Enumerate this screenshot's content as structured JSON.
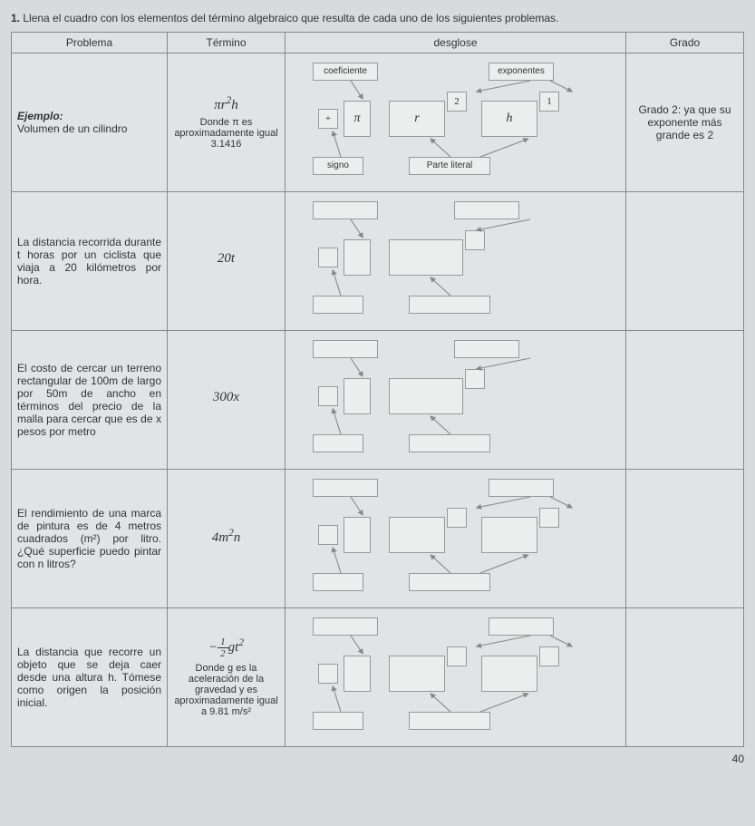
{
  "instruction": {
    "number": "1.",
    "text": "Llena el cuadro con los elementos del término algebraico que resulta de cada uno de los siguientes problemas."
  },
  "headers": {
    "problema": "Problema",
    "termino": "Término",
    "desglose": "desglose",
    "grado": "Grado"
  },
  "labels": {
    "coeficiente": "coeficiente",
    "exponentes": "exponentes",
    "signo": "signo",
    "parte_literal": "Parte literal"
  },
  "rows": [
    {
      "problema_label": "Ejemplo:",
      "problema_text": "Volumen de un cilindro",
      "termino_math": "πr²h",
      "termino_sub": "Donde π es aproximadamente igual 3.1416",
      "boxes": {
        "sign": "+",
        "coef": "π",
        "lit1": "r",
        "exp1": "2",
        "lit2": "h",
        "exp2": "1"
      },
      "grado": "Grado 2: ya que su exponente más grande es 2"
    },
    {
      "problema_text": "La distancia recorrida durante t horas por un ciclista que viaja a 20 kilómetros por hora.",
      "termino_math": "20t",
      "termino_sub": "",
      "boxes": {
        "sign": "",
        "coef": "",
        "lit1": "",
        "exp1": "",
        "lit2": "",
        "exp2": ""
      },
      "grado": ""
    },
    {
      "problema_text": "El costo de cercar un terreno rectangular de 100m de largo por 50m de ancho en términos del precio de la malla para cercar que es de x pesos por metro",
      "termino_math": "300x",
      "termino_sub": "",
      "boxes": {
        "sign": "",
        "coef": "",
        "lit1": "",
        "exp1": "",
        "lit2": "",
        "exp2": ""
      },
      "grado": ""
    },
    {
      "problema_text": "El rendimiento de una marca de pintura es de 4 metros cuadrados (m²) por litro. ¿Qué superficie puedo pintar con n litros?",
      "termino_math": "4m²n",
      "termino_sub": "",
      "boxes": {
        "sign": "",
        "coef": "",
        "lit1": "",
        "exp1": "",
        "lit2": "",
        "exp2": ""
      },
      "grado": ""
    },
    {
      "problema_text": "La distancia que recorre un objeto que se deja caer desde una altura h. Tómese como origen la posición inicial.",
      "termino_frac_neg": "−",
      "termino_frac_num": "1",
      "termino_frac_den": "2",
      "termino_frac_tail": "gt²",
      "termino_sub": "Donde g es la aceleración de la gravedad y es aproximadamente igual a 9.81 m/s²",
      "boxes": {
        "sign": "",
        "coef": "",
        "lit1": "",
        "exp1": "",
        "lit2": "",
        "exp2": ""
      },
      "grado": ""
    }
  ],
  "page_number": "40"
}
